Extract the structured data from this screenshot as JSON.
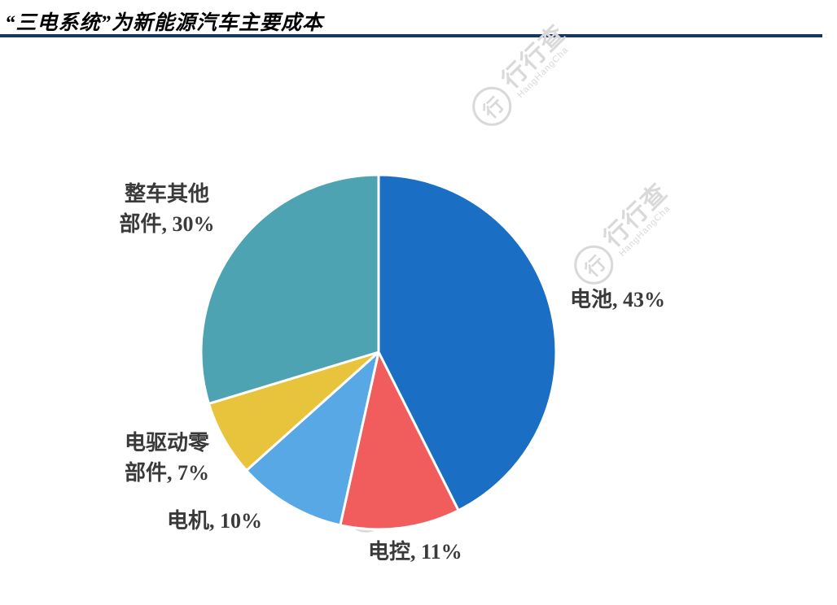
{
  "page": {
    "title": "“三电系统”为新能源汽车主要成本",
    "underline_color": "#17375e",
    "background": "#ffffff"
  },
  "watermark": {
    "logo_glyph": "行",
    "text": "行行查",
    "subtext": "HangHangCha"
  },
  "chart_data": {
    "type": "pie",
    "title": "“三电系统”为新能源汽车主要成本",
    "start_angle_deg": 0,
    "direction": "clockwise",
    "legend_position": "none",
    "label_color": "#3a3a3a",
    "slice_border_color": "#ffffff",
    "slices": [
      {
        "name": "电池",
        "value": 43,
        "label": "电池, 43%",
        "color": "#1a6fc4"
      },
      {
        "name": "电控",
        "value": 11,
        "label": "电控, 11%",
        "color": "#f15c5c"
      },
      {
        "name": "电机",
        "value": 10,
        "label": "电机, 10%",
        "color": "#58a8e6"
      },
      {
        "name": "电驱动零部件",
        "value": 7,
        "label": "电驱动零\n部件, 7%",
        "color": "#e8c43c"
      },
      {
        "name": "整车其他部件",
        "value": 30,
        "label": "整车其他\n部件, 30%",
        "color": "#4ea3b2"
      }
    ]
  }
}
